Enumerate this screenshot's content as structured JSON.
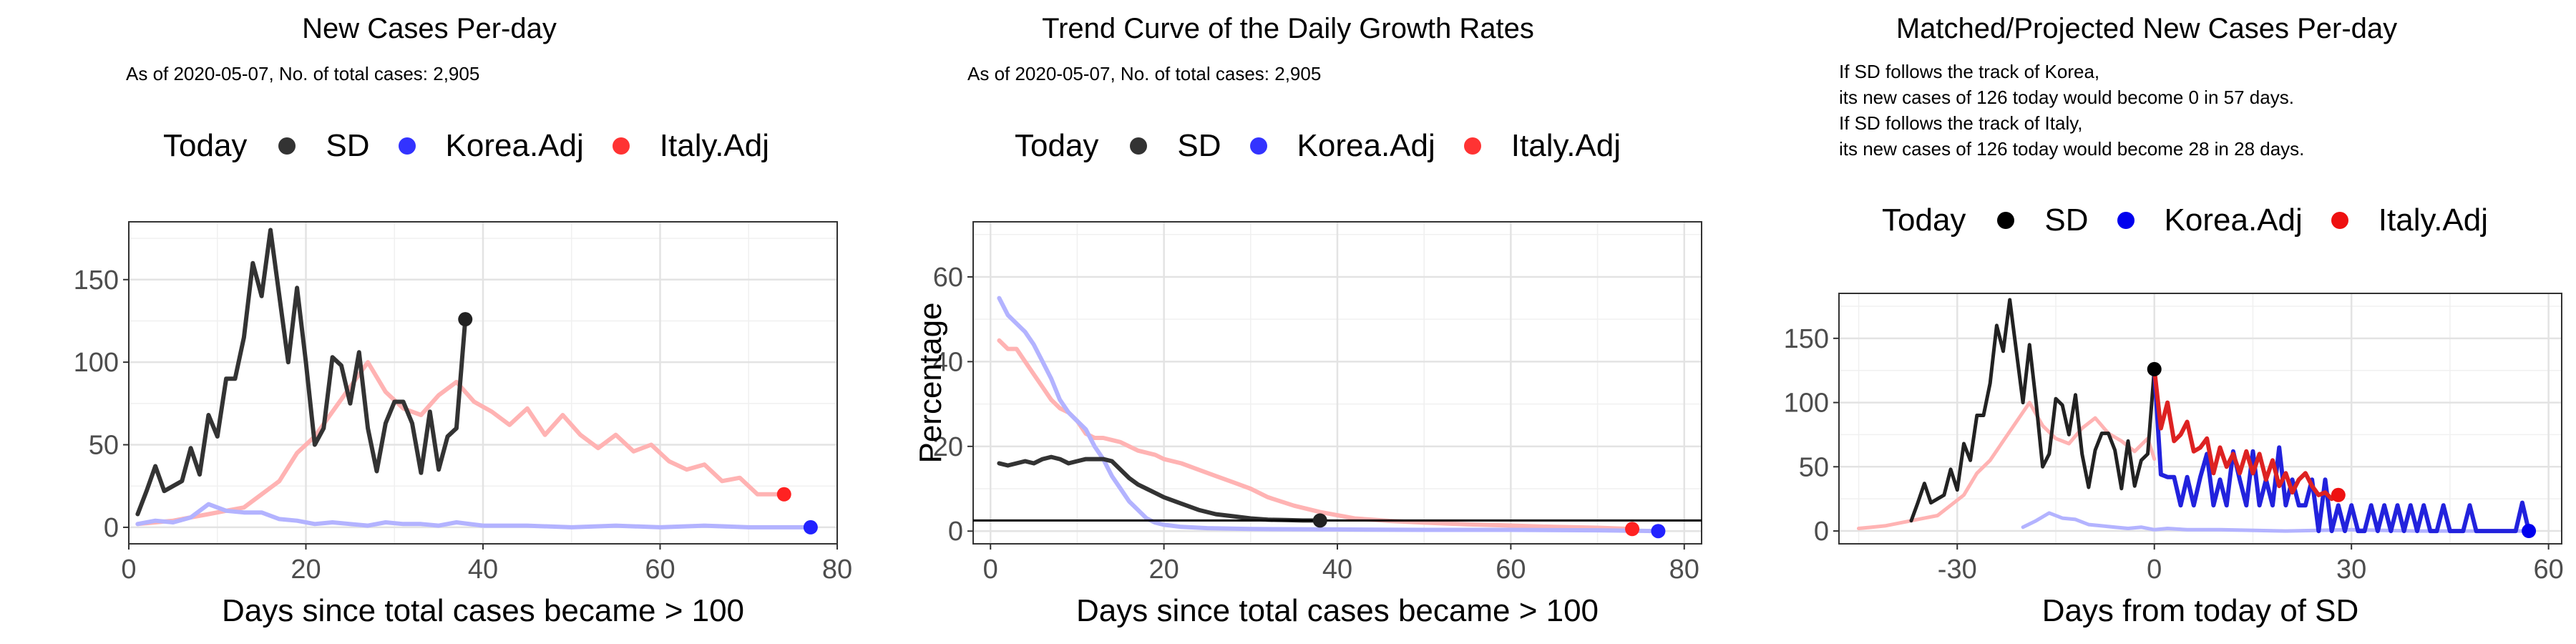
{
  "legend": {
    "title": "Today",
    "items": [
      {
        "label": "SD",
        "color_p12": "#333333",
        "color_p3": "#000000"
      },
      {
        "label": "Korea.Adj",
        "color_p12": "#3333ff",
        "color_p3": "#0000ee"
      },
      {
        "label": "Italy.Adj",
        "color_p12": "#ff3333",
        "color_p3": "#ee1111"
      }
    ]
  },
  "colors": {
    "sd": "#333333",
    "korea": "#b3b3ff",
    "italy": "#ffb3b3",
    "korea_proj": "#2222dd",
    "italy_proj": "#dd2222"
  },
  "panels": [
    {
      "title": "New Cases Per-day",
      "subtitle": "As of 2020-05-07, No. of total cases: 2,905",
      "chart_data": {
        "type": "line",
        "title": "New Cases Per-day",
        "xlabel": "Days since total cases became > 100",
        "ylabel": "",
        "xlim": [
          0,
          80
        ],
        "ylim": [
          -10,
          185
        ],
        "xticks": [
          0,
          20,
          40,
          60,
          80
        ],
        "yticks": [
          0,
          50,
          100,
          150
        ],
        "grid": true,
        "series": [
          {
            "name": "SD",
            "x": [
              1,
              2,
              3,
              4,
              5,
              6,
              7,
              8,
              9,
              10,
              11,
              12,
              13,
              14,
              15,
              16,
              17,
              18,
              19,
              20,
              21,
              22,
              23,
              24,
              25,
              26,
              27,
              28,
              29,
              30,
              31,
              32,
              33,
              34,
              35,
              36,
              37,
              38
            ],
            "y": [
              8,
              22,
              37,
              22,
              25,
              28,
              48,
              32,
              68,
              55,
              90,
              90,
              115,
              160,
              140,
              180,
              140,
              100,
              145,
              100,
              50,
              60,
              103,
              98,
              75,
              106,
              60,
              34,
              63,
              76,
              76,
              63,
              33,
              70,
              35,
              55,
              60,
              126
            ]
          },
          {
            "name": "Korea.Adj",
            "x": [
              1,
              3,
              5,
              7,
              9,
              11,
              13,
              15,
              17,
              19,
              21,
              23,
              25,
              27,
              29,
              31,
              33,
              35,
              37,
              40,
              45,
              50,
              55,
              60,
              65,
              70,
              77
            ],
            "y": [
              2,
              4,
              3,
              6,
              14,
              10,
              9,
              9,
              5,
              4,
              2,
              3,
              2,
              1,
              3,
              2,
              2,
              1,
              3,
              1,
              1,
              0,
              1,
              0,
              1,
              0,
              0
            ]
          },
          {
            "name": "Italy.Adj",
            "x": [
              1,
              3,
              5,
              7,
              9,
              11,
              13,
              15,
              17,
              19,
              21,
              23,
              25,
              27,
              29,
              31,
              33,
              35,
              37,
              39,
              41,
              43,
              45,
              47,
              49,
              51,
              53,
              55,
              57,
              59,
              61,
              63,
              65,
              67,
              69,
              71,
              74
            ],
            "y": [
              2,
              3,
              4,
              6,
              8,
              10,
              12,
              20,
              28,
              45,
              55,
              70,
              85,
              100,
              82,
              72,
              68,
              80,
              88,
              76,
              70,
              62,
              72,
              56,
              68,
              56,
              48,
              56,
              46,
              50,
              40,
              35,
              38,
              28,
              30,
              20,
              20
            ]
          }
        ],
        "today_points": [
          {
            "series": "SD",
            "x": 38,
            "y": 126
          },
          {
            "series": "Korea.Adj",
            "x": 77,
            "y": 0
          },
          {
            "series": "Italy.Adj",
            "x": 74,
            "y": 20
          }
        ]
      }
    },
    {
      "title": "Trend Curve of the Daily Growth Rates",
      "subtitle": "As of 2020-05-07, No. of total cases: 2,905",
      "chart_data": {
        "type": "line",
        "title": "Trend Curve of the Daily Growth Rates",
        "xlabel": "Days since total cases became > 100",
        "ylabel": "Percentage",
        "xlim": [
          -2,
          82
        ],
        "ylim": [
          -3,
          73
        ],
        "xticks": [
          0,
          20,
          40,
          60,
          80
        ],
        "yticks": [
          0,
          20,
          40,
          60
        ],
        "hline": 2.5,
        "grid": true,
        "series": [
          {
            "name": "SD",
            "x": [
              1,
              2,
              3,
              4,
              5,
              6,
              7,
              8,
              9,
              10,
              11,
              12,
              13,
              14,
              15,
              16,
              17,
              18,
              19,
              20,
              22,
              24,
              26,
              28,
              30,
              32,
              34,
              36,
              38
            ],
            "y": [
              16,
              15.5,
              16,
              16.5,
              16,
              17,
              17.5,
              17,
              16,
              16.5,
              17,
              17,
              17,
              16.5,
              14.5,
              12.5,
              11,
              10,
              9,
              8,
              6.5,
              5,
              4,
              3.5,
              3,
              2.7,
              2.6,
              2.5,
              2.5
            ]
          },
          {
            "name": "Korea.Adj",
            "x": [
              1,
              2,
              3,
              4,
              5,
              6,
              7,
              8,
              9,
              10,
              11,
              12,
              13,
              14,
              15,
              16,
              17,
              18,
              19,
              20,
              22,
              25,
              30,
              40,
              50,
              60,
              70,
              77
            ],
            "y": [
              55,
              51,
              49,
              47,
              44,
              40,
              36,
              31,
              28,
              26,
              24,
              20,
              17,
              13,
              10,
              7,
              5,
              3,
              2,
              1.5,
              1,
              0.7,
              0.5,
              0.4,
              0.3,
              0.3,
              0.2,
              0
            ]
          },
          {
            "name": "Italy.Adj",
            "x": [
              1,
              2,
              3,
              4,
              5,
              6,
              7,
              8,
              9,
              10,
              11,
              12,
              13,
              14,
              15,
              16,
              17,
              18,
              19,
              20,
              22,
              24,
              26,
              28,
              30,
              32,
              35,
              38,
              42,
              46,
              50,
              55,
              60,
              65,
              70,
              74
            ],
            "y": [
              45,
              43,
              43,
              40,
              37,
              34,
              31,
              29,
              28,
              26,
              23,
              22,
              22,
              21.5,
              21,
              20,
              19,
              18.5,
              18,
              17,
              16,
              14.5,
              13,
              11.5,
              10,
              8,
              6,
              4.5,
              3,
              2.4,
              2,
              1.6,
              1.3,
              1,
              0.8,
              0.5
            ]
          }
        ],
        "today_points": [
          {
            "series": "SD",
            "x": 38,
            "y": 2.5
          },
          {
            "series": "Korea.Adj",
            "x": 77,
            "y": 0
          },
          {
            "series": "Italy.Adj",
            "x": 74,
            "y": 0.5
          }
        ]
      }
    },
    {
      "title": "Matched/Projected New Cases Per-day",
      "subtitle": "If SD follows the track of Korea,\nits new cases of 126 today would become 0 in 57 days.\nIf SD follows the track of Italy,\nits new cases of 126 today would become 28 in 28 days.",
      "chart_data": {
        "type": "line",
        "title": "Matched/Projected New Cases Per-day",
        "xlabel": "Days from today of SD",
        "ylabel": "",
        "xlim": [
          -48,
          62
        ],
        "ylim": [
          -10,
          185
        ],
        "xticks": [
          -30,
          0,
          30,
          60
        ],
        "yticks": [
          0,
          50,
          100,
          150
        ],
        "grid": true,
        "series": [
          {
            "name": "SD",
            "x": [
              -37,
              -36,
              -35,
              -34,
              -33,
              -32,
              -31,
              -30,
              -29,
              -28,
              -27,
              -26,
              -25,
              -24,
              -23,
              -22,
              -21,
              -20,
              -19,
              -18,
              -17,
              -16,
              -15,
              -14,
              -13,
              -12,
              -11,
              -10,
              -9,
              -8,
              -7,
              -6,
              -5,
              -4,
              -3,
              -2,
              -1,
              0
            ],
            "y": [
              8,
              22,
              37,
              22,
              25,
              28,
              48,
              32,
              68,
              55,
              90,
              90,
              115,
              160,
              140,
              180,
              140,
              100,
              145,
              100,
              50,
              60,
              103,
              98,
              75,
              106,
              60,
              34,
              63,
              76,
              76,
              63,
              33,
              70,
              35,
              55,
              60,
              126
            ]
          },
          {
            "name": "Korea.Adj",
            "x": [
              -20,
              -18,
              -16,
              -14,
              -12,
              -10,
              -8,
              -6,
              -4,
              -2,
              0,
              2,
              5,
              10,
              20,
              30,
              40,
              50,
              57
            ],
            "y": [
              3,
              8,
              14,
              10,
              9,
              5,
              4,
              3,
              2,
              3,
              1,
              2,
              1,
              1,
              0,
              1,
              0,
              0,
              0
            ]
          },
          {
            "name": "Italy.Adj",
            "x": [
              -45,
              -43,
              -41,
              -39,
              -37,
              -35,
              -33,
              -31,
              -29,
              -27,
              -25,
              -23,
              -21,
              -19,
              -17,
              -15,
              -13,
              -11,
              -9,
              -7,
              -5,
              -3,
              -1,
              0
            ],
            "y": [
              2,
              3,
              4,
              6,
              8,
              10,
              12,
              20,
              28,
              45,
              55,
              70,
              85,
              100,
              82,
              72,
              68,
              80,
              88,
              76,
              70,
              62,
              72,
              56
            ]
          },
          {
            "name": "Korea.Adj projected",
            "x": [
              0,
              1,
              2,
              3,
              4,
              5,
              6,
              7,
              8,
              9,
              10,
              11,
              12,
              13,
              14,
              15,
              16,
              17,
              18,
              19,
              20,
              21,
              22,
              23,
              24,
              25,
              26,
              27,
              28,
              29,
              30,
              31,
              32,
              33,
              34,
              35,
              36,
              37,
              38,
              39,
              40,
              41,
              42,
              43,
              44,
              45,
              46,
              47,
              48,
              49,
              50,
              51,
              52,
              53,
              54,
              55,
              56,
              57
            ],
            "y": [
              126,
              44,
              42,
              42,
              20,
              42,
              20,
              42,
              60,
              20,
              40,
              20,
              62,
              40,
              20,
              62,
              20,
              40,
              20,
              65,
              20,
              40,
              20,
              20,
              40,
              0,
              40,
              0,
              20,
              0,
              20,
              0,
              0,
              20,
              0,
              20,
              0,
              20,
              0,
              20,
              0,
              20,
              0,
              0,
              20,
              0,
              0,
              0,
              20,
              0,
              0,
              0,
              0,
              0,
              0,
              0,
              22,
              0
            ]
          },
          {
            "name": "Italy.Adj projected",
            "x": [
              0,
              1,
              2,
              3,
              4,
              5,
              6,
              7,
              8,
              9,
              10,
              11,
              12,
              13,
              14,
              15,
              16,
              17,
              18,
              19,
              20,
              21,
              22,
              23,
              24,
              25,
              26,
              27,
              28
            ],
            "y": [
              126,
              80,
              100,
              70,
              75,
              85,
              62,
              65,
              72,
              45,
              65,
              50,
              60,
              45,
              62,
              45,
              60,
              40,
              55,
              35,
              45,
              30,
              40,
              45,
              35,
              28,
              30,
              25,
              28
            ]
          }
        ],
        "today_points": [
          {
            "series": "SD",
            "x": 0,
            "y": 126
          },
          {
            "series": "Korea.Adj",
            "x": 57,
            "y": 0
          },
          {
            "series": "Italy.Adj",
            "x": 28,
            "y": 28
          }
        ]
      }
    }
  ]
}
